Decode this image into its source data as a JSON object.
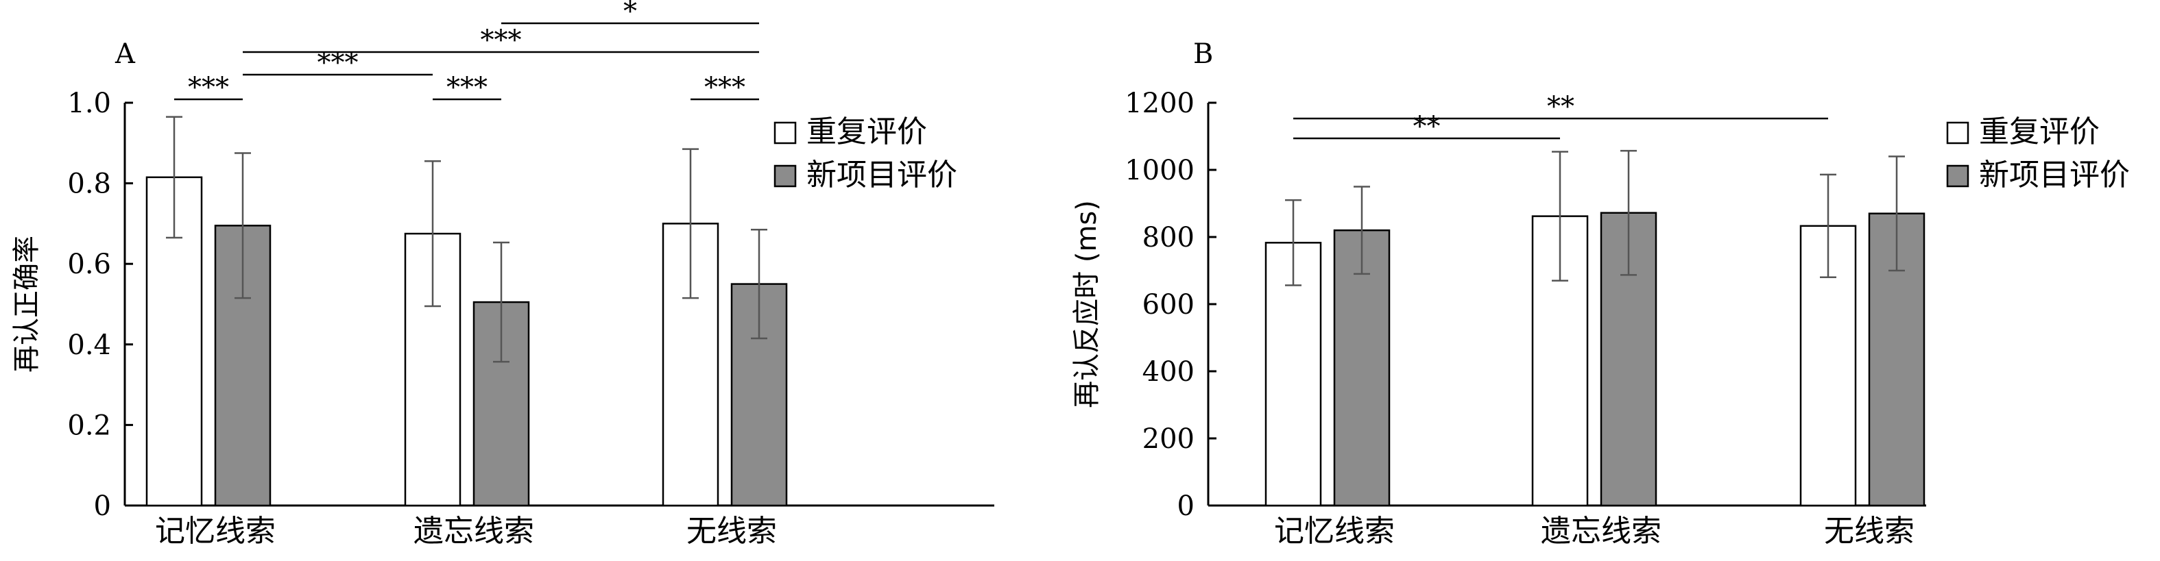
{
  "chart_data": [
    {
      "panel_label": "A",
      "type": "bar",
      "categories": [
        "记忆线索",
        "遗忘线索",
        "无线索"
      ],
      "ylabel": "再认正确率",
      "ylim": [
        0,
        1.0
      ],
      "yticks": [
        0,
        0.2,
        0.4,
        0.6,
        0.8,
        1.0
      ],
      "ytick_labels": [
        "0",
        "0.2",
        "0.4",
        "0.6",
        "0.8",
        "1.0"
      ],
      "legend_position": "top-right",
      "series": [
        {
          "name": "重复评价",
          "color": "#ffffff",
          "values": [
            0.815,
            0.675,
            0.7
          ],
          "errors": [
            0.15,
            0.18,
            0.185
          ]
        },
        {
          "name": "新项目评价",
          "color": "#8c8c8c",
          "values": [
            0.695,
            0.505,
            0.55
          ],
          "errors": [
            0.18,
            0.148,
            0.135
          ]
        }
      ],
      "significance": [
        {
          "from": [
            0,
            0
          ],
          "to": [
            0,
            1
          ],
          "label": "***"
        },
        {
          "from": [
            1,
            0
          ],
          "to": [
            1,
            1
          ],
          "label": "***"
        },
        {
          "from": [
            2,
            0
          ],
          "to": [
            2,
            1
          ],
          "label": "***"
        },
        {
          "from": [
            0,
            1
          ],
          "to": [
            1,
            0
          ],
          "label": "***"
        },
        {
          "from": [
            0,
            1
          ],
          "to": [
            2,
            1
          ],
          "label": "***"
        },
        {
          "from": [
            1,
            1
          ],
          "to": [
            2,
            1
          ],
          "label": "*"
        }
      ]
    },
    {
      "panel_label": "B",
      "type": "bar",
      "categories": [
        "记忆线索",
        "遗忘线索",
        "无线索"
      ],
      "ylabel": "再认反应时 (ms)",
      "ylim": [
        0,
        1200
      ],
      "yticks": [
        0,
        200,
        400,
        600,
        800,
        1000,
        1200
      ],
      "ytick_labels": [
        "0",
        "200",
        "400",
        "600",
        "800",
        "1000",
        "1200"
      ],
      "legend_position": "top-right",
      "series": [
        {
          "name": "重复评价",
          "color": "#ffffff",
          "values": [
            783,
            862,
            833
          ],
          "errors": [
            127,
            192,
            153
          ]
        },
        {
          "name": "新项目评价",
          "color": "#8c8c8c",
          "values": [
            820,
            872,
            870
          ],
          "errors": [
            130,
            185,
            170
          ]
        }
      ],
      "significance": [
        {
          "from": [
            0,
            0
          ],
          "to": [
            1,
            0
          ],
          "label": "**"
        },
        {
          "from": [
            0,
            0
          ],
          "to": [
            2,
            0
          ],
          "label": "**"
        }
      ]
    }
  ]
}
